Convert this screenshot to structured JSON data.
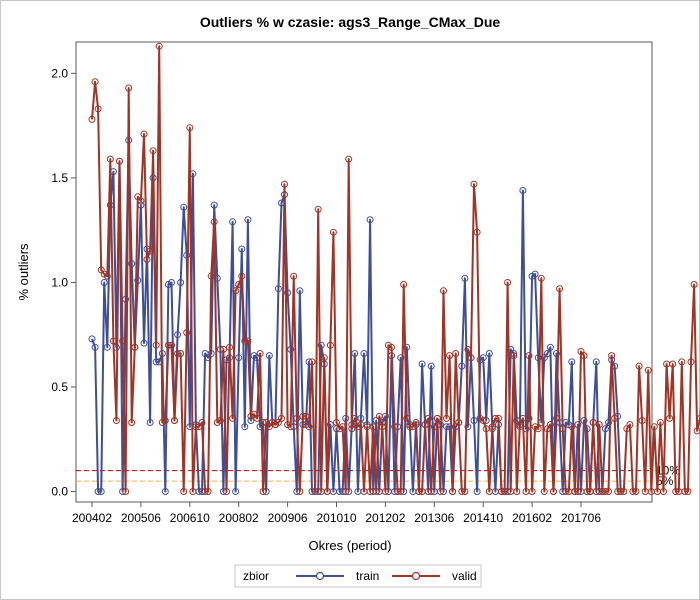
{
  "chart_data": {
    "type": "line",
    "title": "Outliers % w czasie: ags3_Range_CMax_Due",
    "xlabel": "Okres (period)",
    "ylabel": "% outliers",
    "xlim": [
      "200402",
      "201812"
    ],
    "ylim": [
      -0.05,
      2.15
    ],
    "x_ticks": [
      "200402",
      "200506",
      "200610",
      "200802",
      "200906",
      "201010",
      "201202",
      "201306",
      "201410",
      "201602",
      "201706"
    ],
    "y_ticks": [
      0.0,
      0.5,
      1.0,
      1.5,
      2.0
    ],
    "y_tick_labels": [
      "0.0",
      "0.5",
      "1.0",
      "1.5",
      "2.0"
    ],
    "reference_lines": [
      {
        "value": 0.1,
        "label": "10%",
        "color": "#c00000",
        "style": "dashed"
      },
      {
        "value": 0.05,
        "label": "5%",
        "color": "#f0b050",
        "style": "dashed"
      }
    ],
    "legend": {
      "title": "zbior",
      "position": "bottom"
    },
    "series": [
      {
        "name": "train",
        "color": "#3f4f97",
        "values": [
          0.73,
          0.69,
          0.0,
          0.0,
          1.0,
          0.69,
          1.37,
          1.53,
          0.69,
          1.58,
          0.0,
          0.92,
          1.68,
          1.09,
          0.69,
          1.01,
          1.37,
          0.71,
          1.16,
          0.33,
          1.5,
          0.62,
          0.62,
          0.66,
          0.0,
          0.99,
          1.0,
          0.34,
          0.75,
          1.0,
          1.36,
          1.13,
          0.31,
          1.52,
          0.32,
          0.0,
          0.0,
          0.66,
          0.64,
          0.66,
          1.37,
          1.02,
          0.68,
          0.0,
          0.63,
          0.64,
          1.29,
          0.0,
          0.64,
          1.16,
          0.31,
          1.3,
          0.34,
          0.65,
          0.64,
          0.31,
          0.33,
          0.0,
          0.65,
          0.33,
          0.32,
          0.97,
          1.38,
          1.42,
          0.95,
          0.68,
          0.31,
          0.0,
          0.96,
          0.32,
          0.32,
          0.62,
          0.0,
          0.0,
          0.0,
          0.7,
          0.61,
          0.0,
          0.32,
          0.0,
          0.3,
          0.0,
          0.0,
          0.35,
          0.0,
          0.32,
          0.66,
          0.0,
          0.35,
          0.66,
          0.32,
          1.3,
          0.0,
          0.34,
          0.0,
          0.33,
          0.36,
          0.0,
          0.65,
          0.0,
          0.31,
          0.64,
          0.0,
          0.69,
          0.32,
          0.0,
          0.32,
          0.0,
          0.61,
          0.32,
          0.0,
          0.6,
          0.0,
          0.35,
          0.32,
          0.0,
          0.31,
          0.31,
          0.0,
          0.31,
          0.33,
          0.6,
          1.02,
          0.31,
          0.64,
          0.34,
          0.0,
          0.63,
          0.64,
          0.34,
          0.66,
          0.3,
          0.0,
          0.32,
          0.0,
          0.0,
          0.0,
          0.68,
          0.66,
          0.34,
          0.31,
          1.44,
          0.3,
          0.35,
          1.03,
          1.04,
          0.64,
          0.33,
          0.64,
          0.66,
          0.69,
          0.0,
          0.66,
          0.33,
          0.0,
          0.33,
          0.32,
          0.62,
          0.0,
          0.32,
          0.0,
          0.34,
          0.3,
          0.0,
          0.33,
          0.62,
          0.0,
          0.0,
          0.3,
          0.33,
          0.63,
          0.6,
          0.36,
          0.0
        ],
        "note": "one value per period from 200402 onward"
      },
      {
        "name": "valid",
        "color": "#a03426",
        "values": [
          1.78,
          1.96,
          1.83,
          1.06,
          1.04,
          1.03,
          1.59,
          0.72,
          0.34,
          1.58,
          0.72,
          0.0,
          1.93,
          0.33,
          0.69,
          1.41,
          1.39,
          1.71,
          1.11,
          1.15,
          1.63,
          0.7,
          2.13,
          0.33,
          0.34,
          0.7,
          0.7,
          0.34,
          0.66,
          0.66,
          0.0,
          0.76,
          1.74,
          0.0,
          0.31,
          0.31,
          0.33,
          0.0,
          0.0,
          1.03,
          1.29,
          0.33,
          0.34,
          0.68,
          0.0,
          0.69,
          0.35,
          0.96,
          0.99,
          1.03,
          0.72,
          0.72,
          0.36,
          0.37,
          0.35,
          0.66,
          0.0,
          0.33,
          0.31,
          0.33,
          0.32,
          0.33,
          0.35,
          1.47,
          0.32,
          0.31,
          1.03,
          0.35,
          0.0,
          0.36,
          0.36,
          0.31,
          0.62,
          0.0,
          1.35,
          0.0,
          0.64,
          0.0,
          0.7,
          1.24,
          0.33,
          0.3,
          0.31,
          0.0,
          1.59,
          0.3,
          0.35,
          0.31,
          0.32,
          0.0,
          0.31,
          0.0,
          0.31,
          0.0,
          0.36,
          0.31,
          0.0,
          0.7,
          0.69,
          0.31,
          0.0,
          0.0,
          0.99,
          0.35,
          0.31,
          0.31,
          0.33,
          0.0,
          0.0,
          0.32,
          0.35,
          0.0,
          0.31,
          0.35,
          0.0,
          0.96,
          0.35,
          0.65,
          0.0,
          0.66,
          0.33,
          0.0,
          0.0,
          0.68,
          0.64,
          1.47,
          1.24,
          0.35,
          0.34,
          0.3,
          0.0,
          0.31,
          0.35,
          0.35,
          0.0,
          0.0,
          1.0,
          0.0,
          0.65,
          0.0,
          0.32,
          0.35,
          0.0,
          0.65,
          0.0,
          0.31,
          0.3,
          1.02,
          0.0,
          0.3,
          0.32,
          0.0,
          0.35,
          0.97,
          0.3,
          0.0,
          0.0,
          0.31,
          0.0,
          0.0,
          0.67,
          0.65,
          0.0,
          0.0,
          0.33,
          0.0,
          0.32,
          0.0,
          0.0,
          0.0,
          0.65,
          0.35,
          0.0,
          0.0,
          0.0,
          0.3,
          0.32,
          0.0,
          0.0,
          0.6,
          0.34,
          0.0,
          0.58,
          0.0,
          0.31,
          0.0,
          0.33,
          0.0,
          0.61,
          0.35,
          0.61,
          0.0,
          0.0,
          0.62,
          0.0,
          0.0,
          0.62,
          0.99,
          0.29,
          0.35,
          0.58,
          0.33
        ]
      }
    ]
  }
}
